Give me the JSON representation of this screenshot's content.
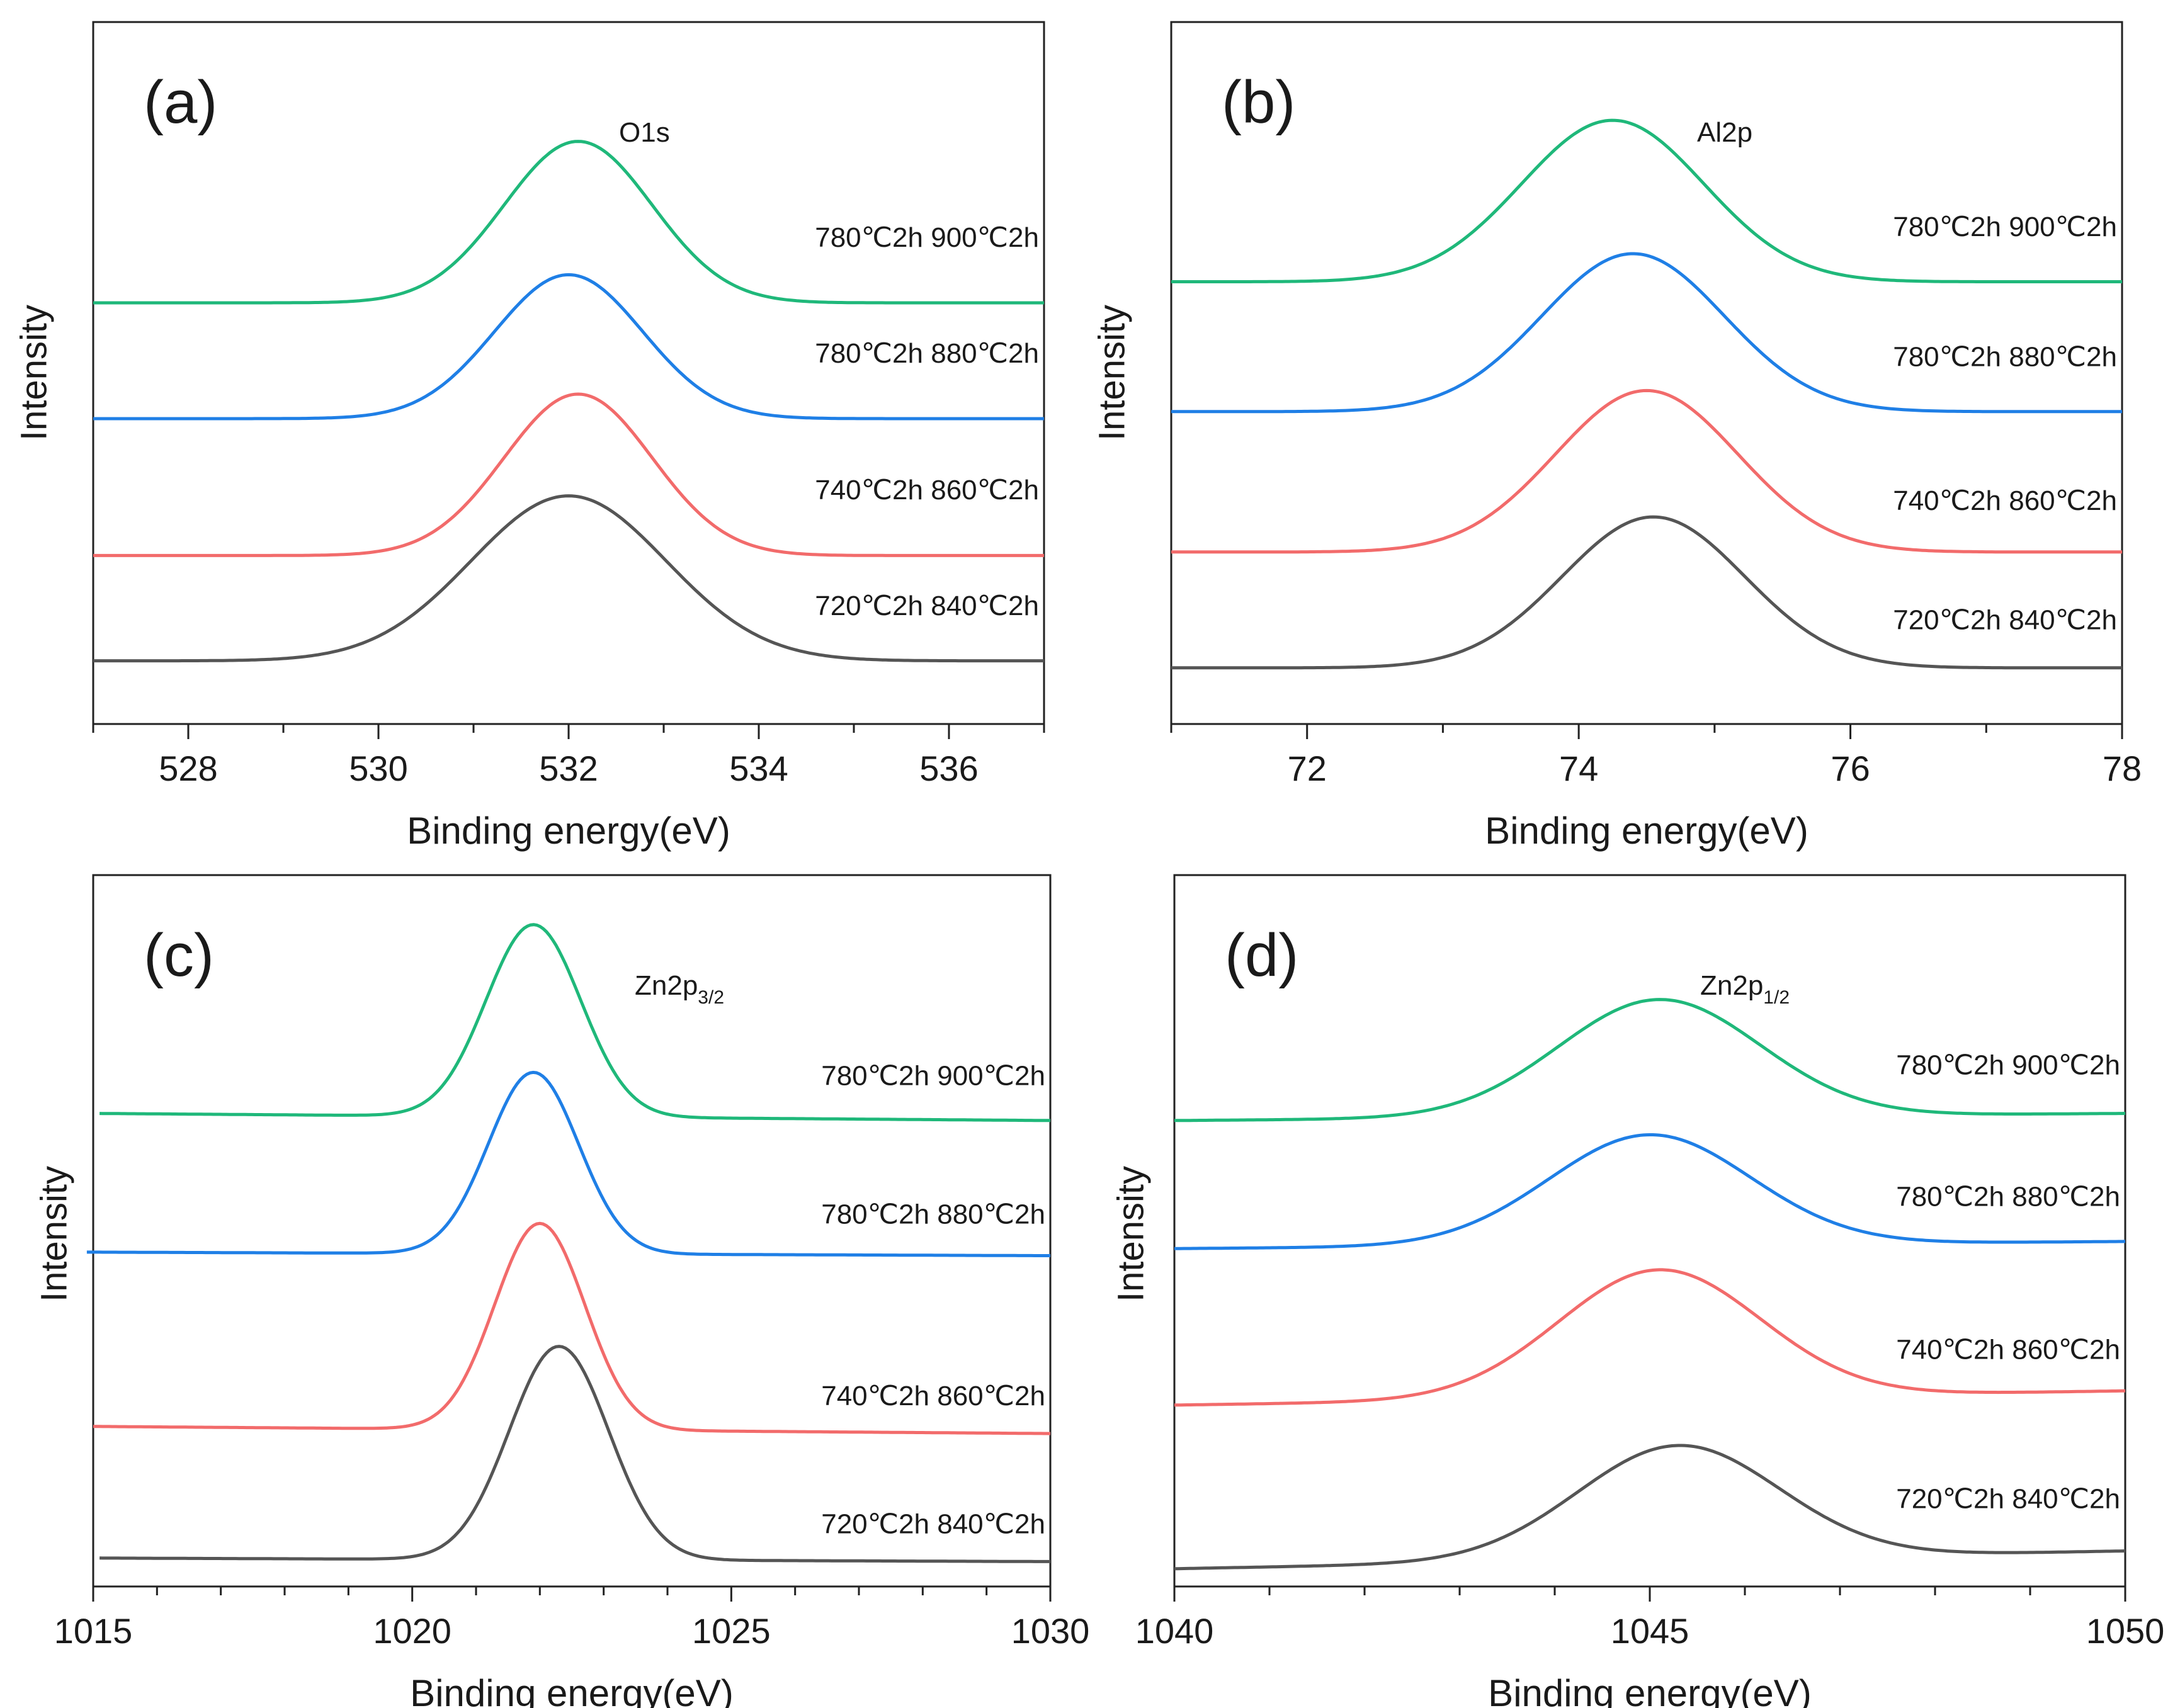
{
  "chart_data": [
    {
      "type": "line",
      "panel_label": "(a)",
      "peak_label": "O1s",
      "peak_sub": "",
      "xlabel": "Binding energy(eV)",
      "ylabel": "Intensity",
      "xlim": [
        527,
        537
      ],
      "xticks": [
        528,
        530,
        532,
        534,
        536
      ],
      "minor_step": 1,
      "ylim": [
        0,
        1
      ],
      "series": [
        {
          "name": "720℃2h 840℃2h",
          "color": "#555555",
          "center": 532.0,
          "width": 1.45,
          "baseline": 0.09,
          "baseline_right": 0.09,
          "height": 0.235,
          "label_y": 0.155
        },
        {
          "name": "740℃2h 860℃2h",
          "color": "#f26b6b",
          "center": 532.1,
          "width": 1.1,
          "baseline": 0.24,
          "baseline_right": 0.24,
          "height": 0.23,
          "label_y": 0.32
        },
        {
          "name": "780℃2h 880℃2h",
          "color": "#1f7fe6",
          "center": 532.0,
          "width": 1.1,
          "baseline": 0.435,
          "baseline_right": 0.435,
          "height": 0.205,
          "label_y": 0.515
        },
        {
          "name": "780℃2h 900℃2h",
          "color": "#1fb87a",
          "center": 532.1,
          "width": 1.1,
          "baseline": 0.6,
          "baseline_right": 0.6,
          "height": 0.23,
          "label_y": 0.68
        }
      ]
    },
    {
      "type": "line",
      "panel_label": "(b)",
      "peak_label": "Al2p",
      "peak_sub": "",
      "xlabel": "Binding energy(eV)",
      "ylabel": "Intensity",
      "xlim": [
        71,
        78
      ],
      "xticks": [
        72,
        74,
        76,
        78
      ],
      "minor_step": 1,
      "ylim": [
        0,
        1
      ],
      "series": [
        {
          "name": "720℃2h 840℃2h",
          "color": "#555555",
          "center": 74.55,
          "width": 0.95,
          "baseline": 0.08,
          "baseline_right": 0.08,
          "height": 0.215,
          "label_y": 0.135
        },
        {
          "name": "740℃2h 860℃2h",
          "color": "#f26b6b",
          "center": 74.5,
          "width": 0.95,
          "baseline": 0.245,
          "baseline_right": 0.245,
          "height": 0.23,
          "label_y": 0.305
        },
        {
          "name": "780℃2h 880℃2h",
          "color": "#1f7fe6",
          "center": 74.4,
          "width": 0.95,
          "baseline": 0.445,
          "baseline_right": 0.445,
          "height": 0.225,
          "label_y": 0.51
        },
        {
          "name": "780℃2h 900℃2h",
          "color": "#1fb87a",
          "center": 74.25,
          "width": 0.95,
          "baseline": 0.63,
          "baseline_right": 0.63,
          "height": 0.23,
          "label_y": 0.695
        }
      ]
    },
    {
      "type": "line",
      "panel_label": "(c)",
      "peak_label": "Zn2p",
      "peak_sub": "3/2",
      "xlabel": "Binding energy(eV)",
      "ylabel": "Intensity",
      "xlim": [
        1015,
        1030
      ],
      "xticks": [
        1015,
        1020,
        1025,
        1030
      ],
      "minor_step": 1,
      "ylim": [
        0,
        1
      ],
      "series": [
        {
          "name": "720℃2h 840℃2h",
          "color": "#555555",
          "center": 1022.3,
          "width": 1.1,
          "baseline": 0.04,
          "baseline_right": 0.035,
          "height": 0.3,
          "label_y": 0.075,
          "xstart": 1015.1
        },
        {
          "name": "740℃2h 860℃2h",
          "color": "#f26b6b",
          "center": 1022.0,
          "width": 1.0,
          "baseline": 0.225,
          "baseline_right": 0.215,
          "height": 0.29,
          "label_y": 0.255,
          "xstart": 1015.0
        },
        {
          "name": "780℃2h 880℃2h",
          "color": "#1f7fe6",
          "center": 1021.9,
          "width": 1.0,
          "baseline": 0.47,
          "baseline_right": 0.465,
          "height": 0.255,
          "label_y": 0.51,
          "xstart": 1014.9
        },
        {
          "name": "780℃2h 900℃2h",
          "color": "#1fb87a",
          "center": 1021.9,
          "width": 1.05,
          "baseline": 0.665,
          "baseline_right": 0.655,
          "height": 0.27,
          "label_y": 0.705,
          "xstart": 1015.1
        }
      ]
    },
    {
      "type": "line",
      "panel_label": "(d)",
      "peak_label": "Zn2p",
      "peak_sub": "1/2",
      "xlabel": "Binding energy(eV)",
      "ylabel": "Intensity",
      "xlim": [
        1040,
        1050
      ],
      "xticks": [
        1040,
        1045,
        1050
      ],
      "minor_step": 1,
      "ylim": [
        0,
        1
      ],
      "series": [
        {
          "name": "720℃2h 840℃2h",
          "color": "#555555",
          "center": 1045.3,
          "width": 1.5,
          "baseline": 0.025,
          "baseline_right": 0.05,
          "height": 0.16,
          "label_y": 0.11
        },
        {
          "name": "740℃2h 860℃2h",
          "color": "#f26b6b",
          "center": 1045.1,
          "width": 1.5,
          "baseline": 0.255,
          "baseline_right": 0.275,
          "height": 0.18,
          "label_y": 0.32
        },
        {
          "name": "780℃2h 880℃2h",
          "color": "#1f7fe6",
          "center": 1045.0,
          "width": 1.5,
          "baseline": 0.475,
          "baseline_right": 0.485,
          "height": 0.155,
          "label_y": 0.535
        },
        {
          "name": "780℃2h 900℃2h",
          "color": "#1fb87a",
          "center": 1045.1,
          "width": 1.5,
          "baseline": 0.655,
          "baseline_right": 0.665,
          "height": 0.165,
          "label_y": 0.72
        }
      ]
    }
  ]
}
